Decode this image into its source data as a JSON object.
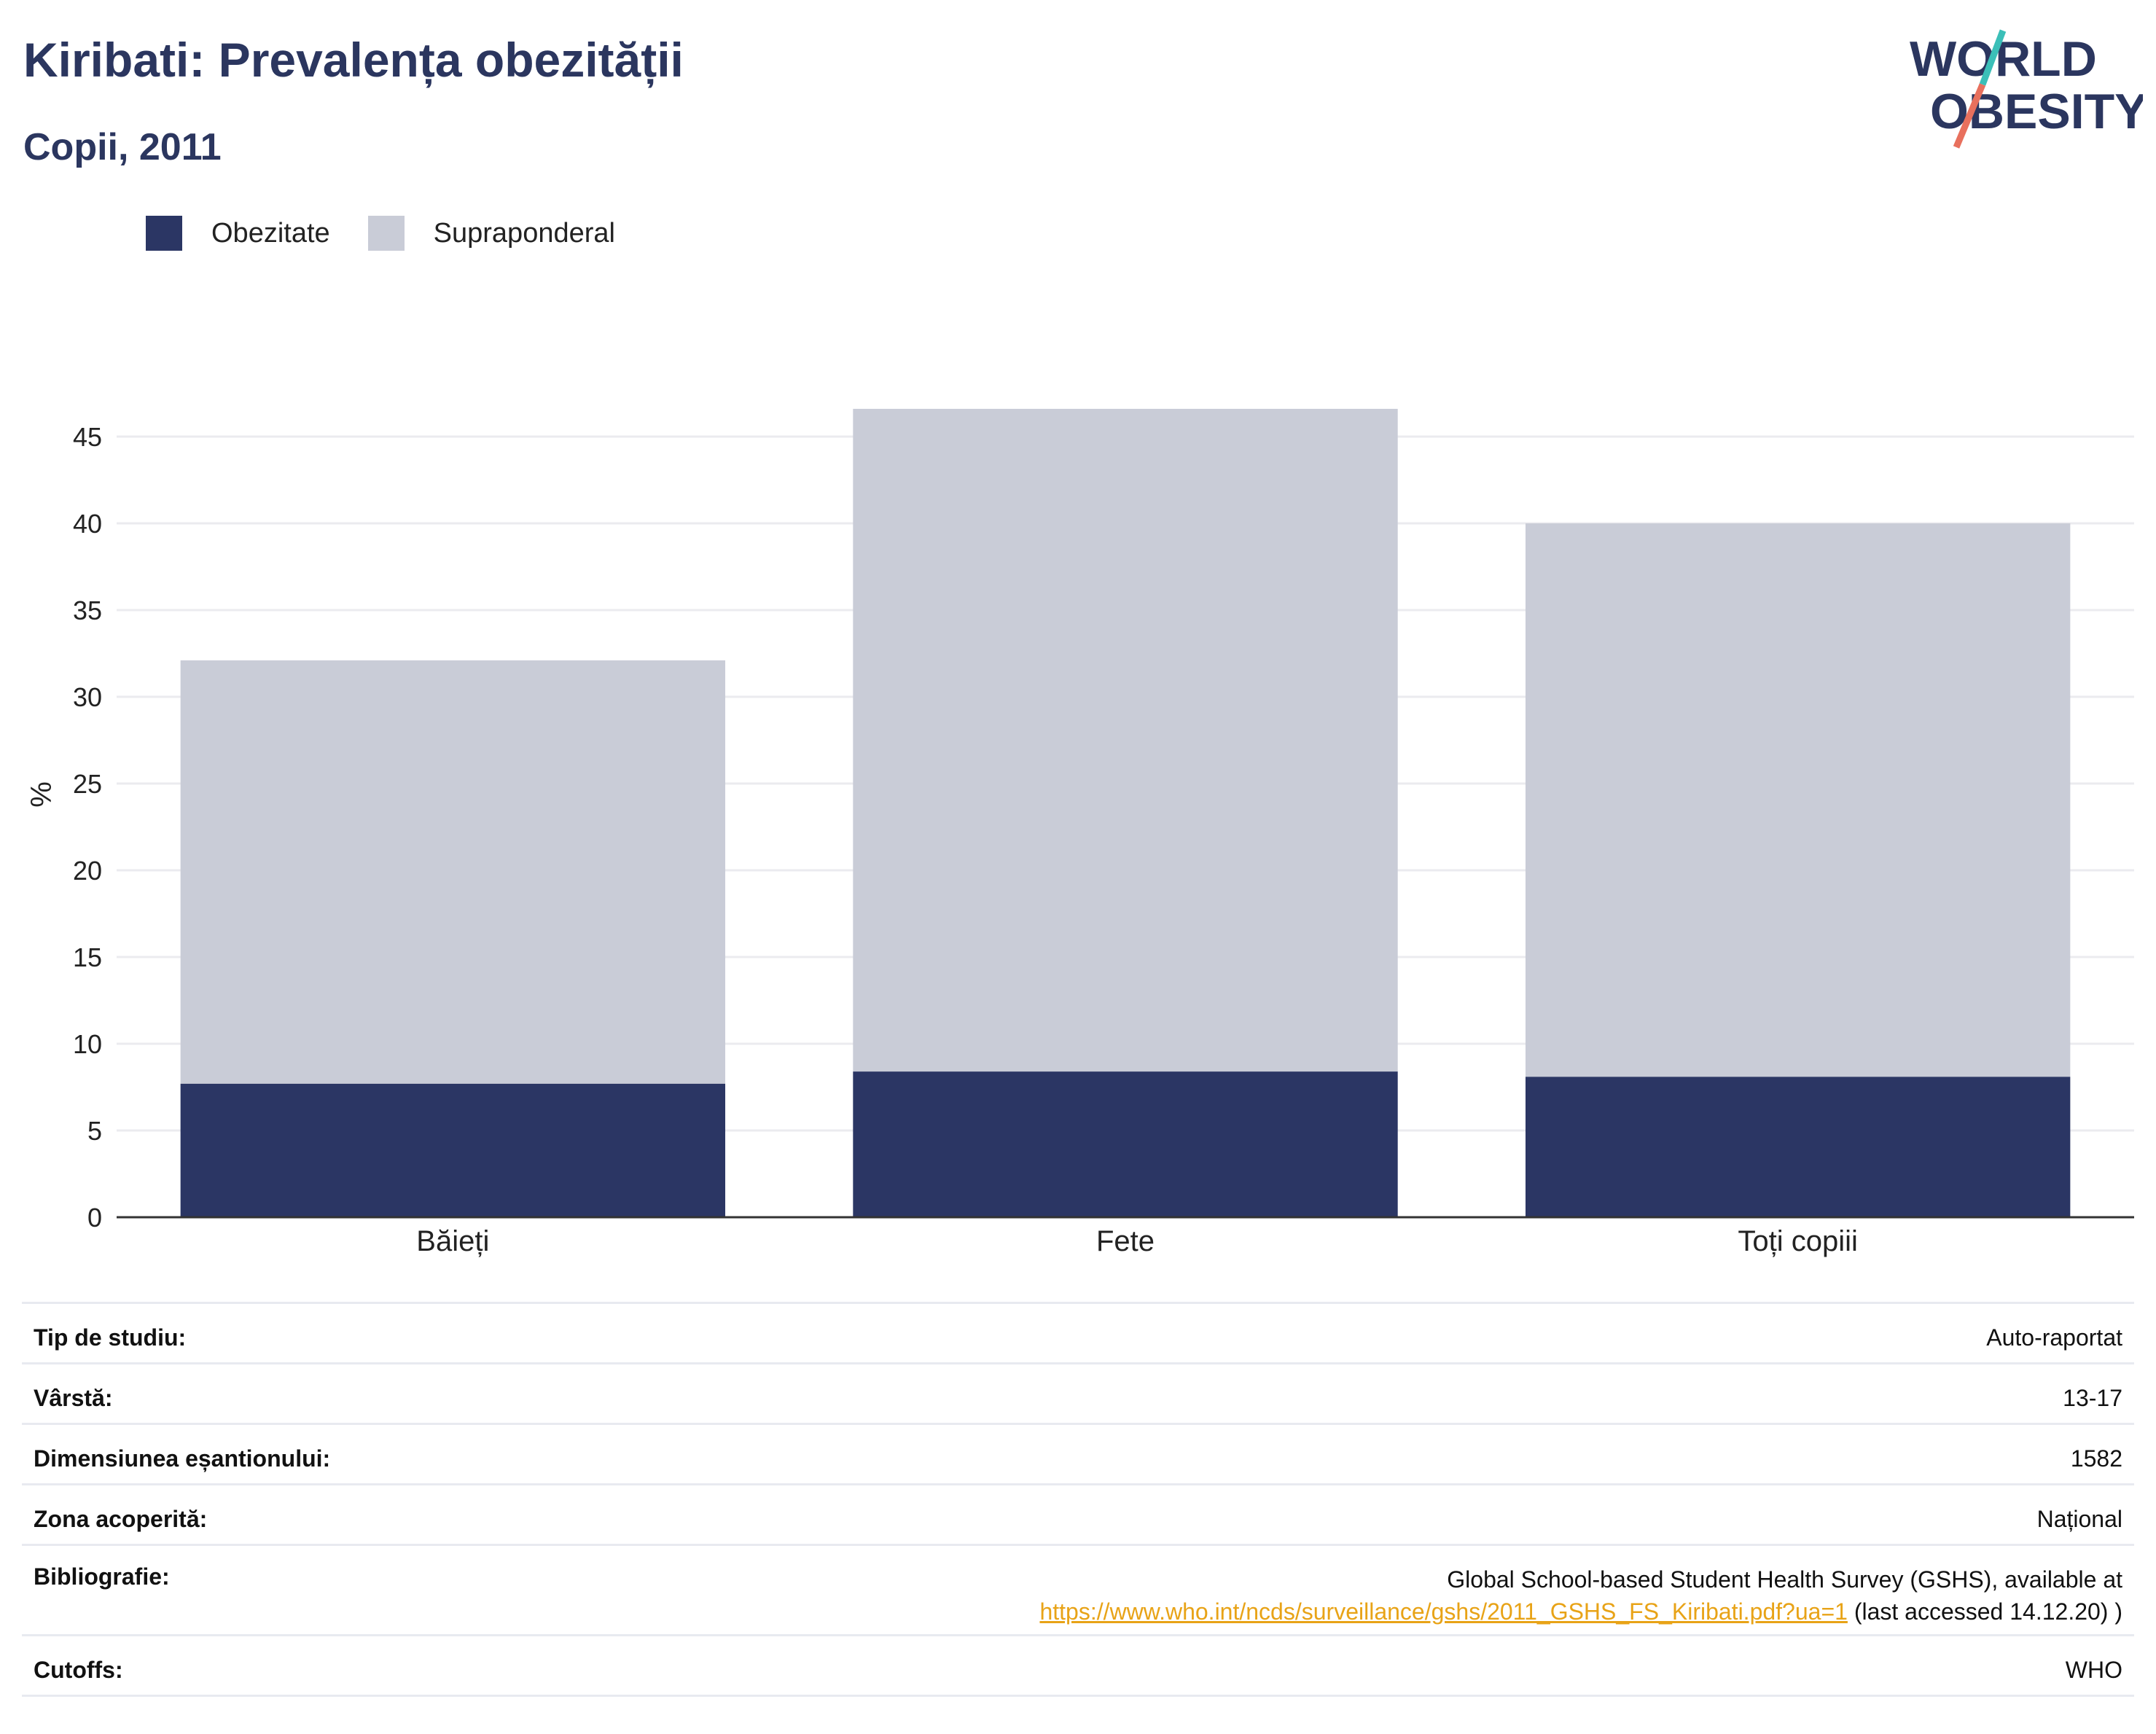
{
  "header": {
    "title": "Kiribati: Prevalența obezității",
    "subtitle": "Copii, 2011"
  },
  "logo": {
    "line1": "WORLD",
    "line2": "OBESITY",
    "colors": [
      "#2b365f",
      "#3bbfb8",
      "#e8705d"
    ]
  },
  "colors": {
    "obesity": "#2b3664",
    "overweight": "#c9ccd7",
    "title": "#2b365f",
    "link": "#e8a317"
  },
  "chart_data": {
    "type": "bar",
    "stacked": true,
    "categories": [
      "Băieți",
      "Fete",
      "Toți copiii"
    ],
    "series": [
      {
        "name": "Obezitate",
        "values": [
          7.7,
          8.4,
          8.1
        ]
      },
      {
        "name": "Supraponderal",
        "values": [
          24.4,
          38.2,
          31.9
        ]
      }
    ],
    "ylabel": "%",
    "ylim": [
      0,
      47
    ],
    "yticks": [
      0,
      5,
      10,
      15,
      20,
      25,
      30,
      35,
      40,
      45
    ],
    "grid": true,
    "legend_position": "top-left"
  },
  "info": {
    "rows": [
      {
        "label": "Tip de studiu:",
        "value": "Auto-raportat"
      },
      {
        "label": "Vârstă:",
        "value": "13-17"
      },
      {
        "label": "Dimensiunea eșantionului:",
        "value": "1582"
      },
      {
        "label": "Zona acoperită:",
        "value": "Național"
      }
    ],
    "bibliography": {
      "label": "Bibliografie:",
      "text": "Global School-based Student Health Survey (GSHS), available at",
      "link": "https://www.who.int/ncds/surveillance/gshs/2011_GSHS_FS_Kiribati.pdf?ua=1",
      "suffix": " (last accessed 14.12.20) )"
    },
    "cutoffs": {
      "label": "Cutoffs:",
      "value": "WHO"
    }
  }
}
